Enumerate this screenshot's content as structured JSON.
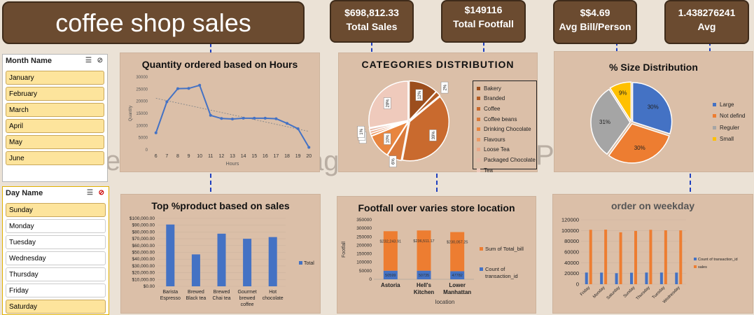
{
  "dashboard_title": "coffee shop sales",
  "kpis": [
    {
      "value": "$698,812.33",
      "label": "Total Sales"
    },
    {
      "value": "$149116",
      "label": "Total Footfall"
    },
    {
      "value": "$$4.69",
      "label": "Avg Bill/Person"
    },
    {
      "value": "1.438276241",
      "label": "Avg"
    }
  ],
  "background_watermark": [
    "e",
    "ag",
    "Pa"
  ],
  "slicers": {
    "month": {
      "title": "Month Name",
      "items": [
        {
          "label": "January",
          "selected": true
        },
        {
          "label": "February",
          "selected": true
        },
        {
          "label": "March",
          "selected": true
        },
        {
          "label": "April",
          "selected": true
        },
        {
          "label": "May",
          "selected": true
        },
        {
          "label": "June",
          "selected": true
        }
      ]
    },
    "day": {
      "title": "Day Name",
      "items": [
        {
          "label": "Sunday",
          "selected": true
        },
        {
          "label": "Monday",
          "selected": false
        },
        {
          "label": "Tuesday",
          "selected": false
        },
        {
          "label": "Wednesday",
          "selected": false
        },
        {
          "label": "Thursday",
          "selected": false
        },
        {
          "label": "Friday",
          "selected": false
        },
        {
          "label": "Saturday",
          "selected": true
        }
      ]
    }
  },
  "chart_data": [
    {
      "type": "line",
      "title": "Quantity ordered based on Hours",
      "xlabel": "Hours",
      "ylabel": "Quantity",
      "x": [
        6,
        7,
        8,
        9,
        10,
        11,
        12,
        13,
        14,
        15,
        16,
        17,
        18,
        19,
        20
      ],
      "values": [
        7000,
        19800,
        25200,
        25300,
        26600,
        14200,
        12900,
        12700,
        13000,
        13000,
        13000,
        12800,
        10900,
        8700,
        1000
      ],
      "trendline": true,
      "ylim": [
        0,
        30000
      ],
      "yticks": [
        0,
        5000,
        10000,
        15000,
        20000,
        25000,
        30000
      ],
      "color": "#4472c4"
    },
    {
      "type": "pie",
      "title": "CATEGORIES DISTRIBUTION",
      "slices": [
        {
          "name": "Bakery",
          "value": 12,
          "label": "12%",
          "color": "#9c4e1d"
        },
        {
          "name": "Branded",
          "value": 2,
          "label": "2%",
          "color": "#b35d25"
        },
        {
          "name": "Coffee",
          "value": 39,
          "label": "39%",
          "color": "#c96a2e"
        },
        {
          "name": "Coffee beans",
          "value": 6,
          "label": "6%",
          "color": "#d9793a"
        },
        {
          "name": "Drinking Chocolate",
          "value": 10,
          "label": "10%",
          "color": "#e8853f"
        },
        {
          "name": "Flavours",
          "value": 1,
          "label": "1%",
          "color": "#ec9a66"
        },
        {
          "name": "Loose Tea",
          "value": 1,
          "label": "1%",
          "color": "#eaa889"
        },
        {
          "name": "Packaged Chocolate",
          "value": 1,
          "label": "1%",
          "color": "#e6b7a5"
        },
        {
          "name": "Tea",
          "value": 28,
          "label": "28%",
          "color": "#efcabc"
        }
      ],
      "legend_position": "right"
    },
    {
      "type": "pie",
      "title": "% Size Distribution",
      "slices": [
        {
          "name": "Large",
          "value": 30,
          "label": "30%",
          "color": "#4472c4"
        },
        {
          "name": "Not defind",
          "value": 30,
          "label": "30%",
          "color": "#ed7d31"
        },
        {
          "name": "Reguler",
          "value": 31,
          "label": "31%",
          "color": "#a5a5a5"
        },
        {
          "name": "Small",
          "value": 9,
          "label": "9%",
          "color": "#ffc000"
        }
      ],
      "legend_position": "right"
    },
    {
      "type": "bar",
      "title": "Top %product based on sales",
      "categories": [
        "Barista Espresso",
        "Brewed Black tea",
        "Brewed Chai tea",
        "Gourmet brewed coffee",
        "Hot chocolate"
      ],
      "category_lines": [
        [
          "Barista",
          "Espresso"
        ],
        [
          "Brewed",
          "Black tea"
        ],
        [
          "Brewed",
          "Chai tea"
        ],
        [
          "Gourmet",
          "brewed",
          "coffee"
        ],
        [
          "Hot",
          "chocolate"
        ]
      ],
      "series": [
        {
          "name": "Total",
          "values": [
            91000,
            47000,
            77500,
            70000,
            72500
          ],
          "color": "#4472c4"
        }
      ],
      "ylim": [
        0,
        100000
      ],
      "yticks": [
        "$0.00",
        "$10,000.00",
        "$20,000.00",
        "$30,000.00",
        "$40,000.00",
        "$50,000.00",
        "$60,000.00",
        "$70,000.00",
        "$80,000.00",
        "$90,000.00",
        "$100,000.00"
      ],
      "legend_position": "right"
    },
    {
      "type": "bar",
      "stacked": true,
      "title": "Footfall over varies store location",
      "xlabel": "location",
      "ylabel": "Footfall",
      "categories": [
        "Astoria",
        "Hell's Kitchen",
        "Lower Manhattan"
      ],
      "category_lines": [
        [
          "Astoria"
        ],
        [
          "Hell's",
          "Kitchen"
        ],
        [
          "Lower",
          "Manhattan"
        ]
      ],
      "series": [
        {
          "name": "Count of transaction_id",
          "values": [
            50599,
            50735,
            47782
          ],
          "labels": [
            "50599",
            "50735",
            "47782"
          ],
          "color": "#4472c4"
        },
        {
          "name": "Sum of Total_bill",
          "values": [
            232243.91,
            236511.17,
            230057.25
          ],
          "labels": [
            "$232,243.91",
            "$236,511.17",
            "$230,057.25"
          ],
          "color": "#ed7d31"
        }
      ],
      "ylim": [
        0,
        350000
      ],
      "yticks": [
        0,
        50000,
        100000,
        150000,
        200000,
        250000,
        300000,
        350000
      ],
      "legend_position": "right"
    },
    {
      "type": "bar",
      "title": "order on weekday",
      "categories": [
        "Friday",
        "Monday",
        "Saturday",
        "Sunday",
        "Thursday",
        "Tuesday",
        "Wednesday"
      ],
      "series": [
        {
          "name": "Count of transaction_id",
          "values": [
            21700,
            21600,
            20500,
            21400,
            21700,
            21700,
            21600
          ],
          "color": "#4472c4"
        },
        {
          "name": "sales",
          "values": [
            101400,
            101700,
            96700,
            99300,
            101400,
            100400,
            100300
          ],
          "color": "#ed7d31"
        }
      ],
      "ylim": [
        0,
        120000
      ],
      "yticks": [
        0,
        20000,
        40000,
        60000,
        80000,
        100000,
        120000
      ],
      "legend_position": "right"
    }
  ]
}
